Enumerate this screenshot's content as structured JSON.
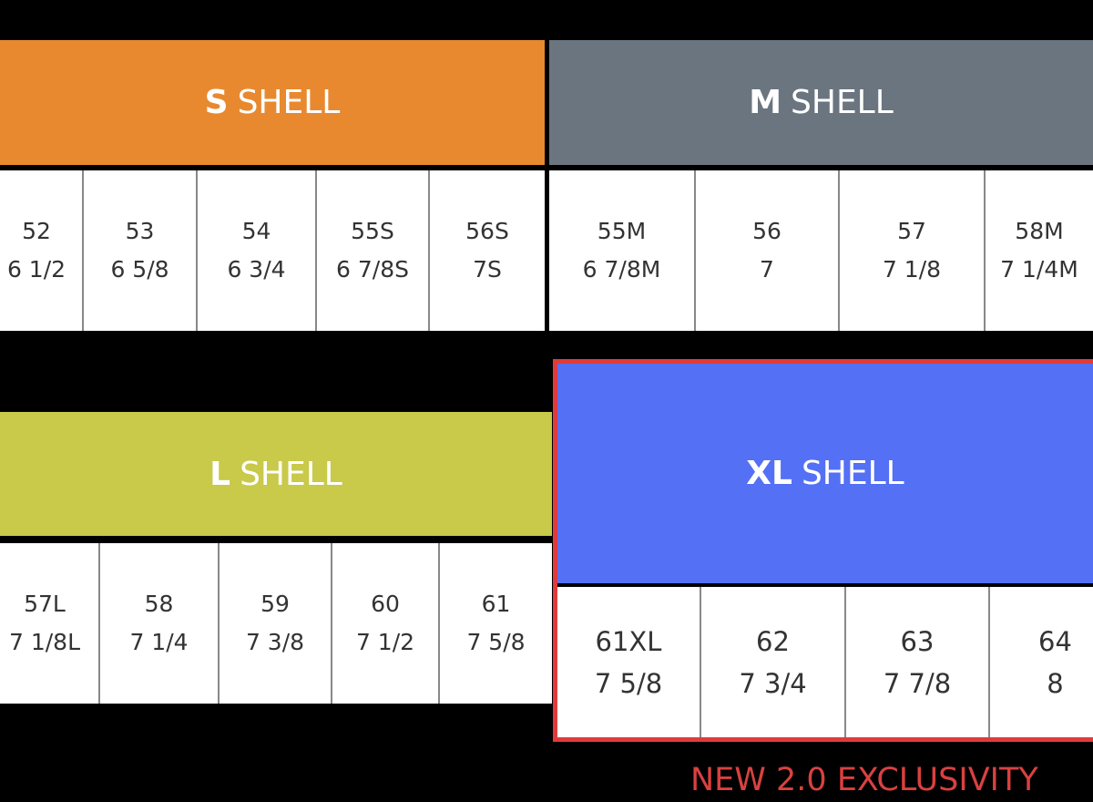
{
  "shells": [
    {
      "size": "S",
      "label": "SHELL",
      "cells": [
        {
          "cm": "52",
          "hat": "6 1/2"
        },
        {
          "cm": "53",
          "hat": "6 5/8"
        },
        {
          "cm": "54",
          "hat": "6 3/4"
        },
        {
          "cm": "55S",
          "hat": "6 7/8S"
        },
        {
          "cm": "56S",
          "hat": "7S"
        }
      ]
    },
    {
      "size": "M",
      "label": "SHELL",
      "cells": [
        {
          "cm": "55M",
          "hat": "6 7/8M"
        },
        {
          "cm": "56",
          "hat": "7"
        },
        {
          "cm": "57",
          "hat": "7 1/8"
        },
        {
          "cm": "58M",
          "hat": "7 1/4M"
        }
      ]
    },
    {
      "size": "L",
      "label": "SHELL",
      "cells": [
        {
          "cm": "57L",
          "hat": "7 1/8L"
        },
        {
          "cm": "58",
          "hat": "7 1/4"
        },
        {
          "cm": "59",
          "hat": "7 3/8"
        },
        {
          "cm": "60",
          "hat": "7 1/2"
        },
        {
          "cm": "61",
          "hat": "7 5/8"
        }
      ]
    },
    {
      "size": "XL",
      "label": "SHELL",
      "cells": [
        {
          "cm": "61XL",
          "hat": "7 5/8"
        },
        {
          "cm": "62",
          "hat": "7 3/4"
        },
        {
          "cm": "63",
          "hat": "7 7/8"
        },
        {
          "cm": "64",
          "hat": "8"
        }
      ]
    }
  ],
  "note": "NEW 2.0 EXCLUSIVITY"
}
